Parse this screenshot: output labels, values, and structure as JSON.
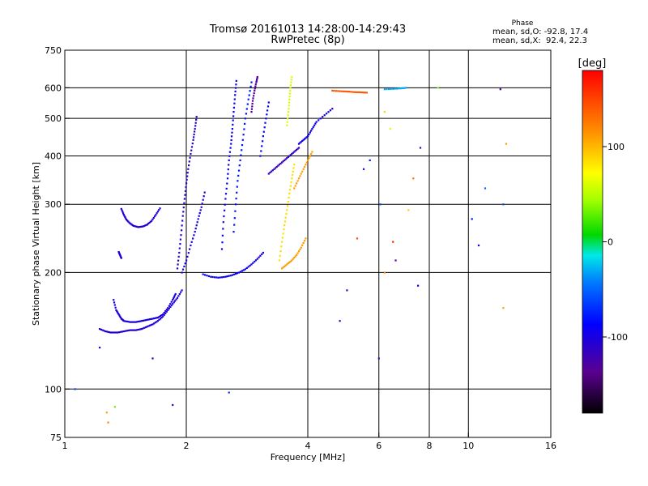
{
  "chart_data": {
    "type": "scatter",
    "title": "Tromsø 20161013 14:28:00-14:29:43",
    "subtitle": "RwPretec (8p)",
    "xlabel": "Frequency [MHz]",
    "ylabel": "Stationary phase Virtual Height [km]",
    "x_scale": "log",
    "y_scale": "log",
    "xlim": [
      1,
      16
    ],
    "ylim": [
      75,
      750
    ],
    "x_ticks": [
      {
        "value": 1,
        "label": "1"
      },
      {
        "value": 2,
        "label": "2"
      },
      {
        "value": 4,
        "label": "4"
      },
      {
        "value": 6,
        "label": "6"
      },
      {
        "value": 8,
        "label": "8"
      },
      {
        "value": 10,
        "label": "10"
      },
      {
        "value": 16,
        "label": "16"
      }
    ],
    "x_grid": [
      2,
      4,
      6,
      8,
      10
    ],
    "y_ticks": [
      {
        "value": 75,
        "label": "75"
      },
      {
        "value": 100,
        "label": "100"
      },
      {
        "value": 200,
        "label": "200"
      },
      {
        "value": 300,
        "label": "300"
      },
      {
        "value": 400,
        "label": "400"
      },
      {
        "value": 500,
        "label": "500"
      },
      {
        "value": 600,
        "label": "600"
      },
      {
        "value": 750,
        "label": "750"
      }
    ],
    "y_grid": [
      100,
      200,
      300,
      400,
      500,
      600
    ],
    "grid": true,
    "phase_stats": {
      "heading": "Phase",
      "o_line": "mean, sd,O: -92.8, 17.4",
      "x_line": "mean, sd,X:  92.4, 22.3"
    },
    "colorbar": {
      "label": "[deg]",
      "range": [
        -180,
        180
      ],
      "ticks": [
        {
          "value": 100,
          "label": "100"
        },
        {
          "value": 0,
          "label": "0"
        },
        {
          "value": -100,
          "label": "-100"
        }
      ]
    },
    "traces": [
      {
        "name": "",
        "phase": -100,
        "points": [
          [
            1.32,
            170
          ],
          [
            1.34,
            160
          ],
          [
            1.36,
            156
          ],
          [
            1.38,
            152
          ],
          [
            1.4,
            150
          ],
          [
            1.45,
            149
          ],
          [
            1.5,
            149
          ],
          [
            1.55,
            150
          ],
          [
            1.6,
            151
          ],
          [
            1.65,
            152
          ],
          [
            1.7,
            153
          ],
          [
            1.75,
            156
          ],
          [
            1.8,
            162
          ],
          [
            1.85,
            170
          ],
          [
            1.88,
            176
          ]
        ]
      },
      {
        "name": "",
        "phase": -105,
        "points": [
          [
            1.22,
            143
          ],
          [
            1.26,
            141
          ],
          [
            1.3,
            140
          ],
          [
            1.35,
            140
          ],
          [
            1.4,
            141
          ],
          [
            1.45,
            142
          ],
          [
            1.5,
            142
          ],
          [
            1.55,
            143
          ],
          [
            1.6,
            145
          ],
          [
            1.65,
            147
          ],
          [
            1.7,
            150
          ],
          [
            1.75,
            154
          ],
          [
            1.8,
            160
          ],
          [
            1.85,
            166
          ],
          [
            1.9,
            172
          ],
          [
            1.95,
            180
          ]
        ]
      },
      {
        "name": "",
        "phase": -105,
        "points": [
          [
            1.38,
            292
          ],
          [
            1.4,
            282
          ],
          [
            1.42,
            274
          ],
          [
            1.45,
            268
          ],
          [
            1.48,
            264
          ],
          [
            1.52,
            262
          ],
          [
            1.56,
            263
          ],
          [
            1.6,
            266
          ],
          [
            1.64,
            272
          ],
          [
            1.68,
            282
          ],
          [
            1.72,
            293
          ]
        ]
      },
      {
        "name": "",
        "phase": -105,
        "points": [
          [
            1.36,
            226
          ],
          [
            1.37,
            222
          ],
          [
            1.38,
            218
          ]
        ]
      },
      {
        "name": "",
        "phase": -110,
        "points": [
          [
            1.9,
            205
          ],
          [
            1.92,
            225
          ],
          [
            1.94,
            250
          ],
          [
            1.96,
            280
          ],
          [
            1.98,
            310
          ],
          [
            2.0,
            340
          ],
          [
            2.02,
            370
          ],
          [
            2.05,
            405
          ],
          [
            2.08,
            440
          ],
          [
            2.1,
            470
          ],
          [
            2.12,
            505
          ]
        ]
      },
      {
        "name": "",
        "phase": -100,
        "points": [
          [
            1.95,
            200
          ],
          [
            2.0,
            215
          ],
          [
            2.05,
            235
          ],
          [
            2.1,
            255
          ],
          [
            2.14,
            275
          ],
          [
            2.18,
            295
          ],
          [
            2.22,
            322
          ]
        ]
      },
      {
        "name": "",
        "phase": -95,
        "points": [
          [
            2.2,
            198
          ],
          [
            2.3,
            195
          ],
          [
            2.4,
            194
          ],
          [
            2.5,
            195
          ],
          [
            2.6,
            197
          ],
          [
            2.7,
            200
          ],
          [
            2.8,
            204
          ],
          [
            2.9,
            210
          ],
          [
            3.0,
            217
          ],
          [
            3.1,
            225
          ]
        ]
      },
      {
        "name": "",
        "phase": -95,
        "points": [
          [
            2.45,
            230
          ],
          [
            2.47,
            270
          ],
          [
            2.5,
            310
          ],
          [
            2.53,
            350
          ],
          [
            2.55,
            390
          ],
          [
            2.58,
            430
          ],
          [
            2.6,
            470
          ],
          [
            2.62,
            520
          ],
          [
            2.64,
            575
          ],
          [
            2.66,
            625
          ]
        ]
      },
      {
        "name": "",
        "phase": -80,
        "points": [
          [
            2.62,
            255
          ],
          [
            2.65,
            300
          ],
          [
            2.68,
            345
          ],
          [
            2.72,
            390
          ],
          [
            2.76,
            440
          ],
          [
            2.8,
            500
          ],
          [
            2.85,
            560
          ],
          [
            2.9,
            620
          ]
        ]
      },
      {
        "name": "",
        "phase": -130,
        "points": [
          [
            2.9,
            520
          ],
          [
            2.92,
            555
          ],
          [
            2.95,
            590
          ],
          [
            2.98,
            620
          ],
          [
            3.0,
            640
          ]
        ]
      },
      {
        "name": "",
        "phase": -85,
        "points": [
          [
            3.05,
            400
          ],
          [
            3.1,
            450
          ],
          [
            3.15,
            500
          ],
          [
            3.2,
            550
          ]
        ]
      },
      {
        "name": "",
        "phase": -115,
        "points": [
          [
            3.2,
            360
          ],
          [
            3.3,
            370
          ],
          [
            3.4,
            380
          ],
          [
            3.5,
            390
          ],
          [
            3.6,
            400
          ],
          [
            3.7,
            410
          ],
          [
            3.8,
            420
          ]
        ]
      },
      {
        "name": "",
        "phase": 85,
        "points": [
          [
            3.4,
            215
          ],
          [
            3.45,
            240
          ],
          [
            3.5,
            265
          ],
          [
            3.55,
            290
          ],
          [
            3.6,
            320
          ],
          [
            3.65,
            350
          ],
          [
            3.7,
            380
          ]
        ]
      },
      {
        "name": "",
        "phase": 110,
        "points": [
          [
            3.45,
            205
          ],
          [
            3.55,
            210
          ],
          [
            3.65,
            215
          ],
          [
            3.75,
            222
          ],
          [
            3.85,
            232
          ],
          [
            3.95,
            245
          ]
        ]
      },
      {
        "name": "",
        "phase": 110,
        "points": [
          [
            3.7,
            330
          ],
          [
            3.8,
            350
          ],
          [
            3.9,
            370
          ],
          [
            4.0,
            390
          ],
          [
            4.1,
            410
          ]
        ]
      },
      {
        "name": "",
        "phase": 60,
        "points": [
          [
            3.55,
            480
          ],
          [
            3.58,
            520
          ],
          [
            3.6,
            560
          ],
          [
            3.62,
            600
          ],
          [
            3.65,
            640
          ]
        ]
      },
      {
        "name": "",
        "phase": -95,
        "points": [
          [
            3.8,
            430
          ],
          [
            3.9,
            440
          ],
          [
            4.0,
            450
          ],
          [
            4.1,
            470
          ],
          [
            4.2,
            490
          ],
          [
            4.4,
            510
          ],
          [
            4.6,
            530
          ]
        ]
      },
      {
        "name": "",
        "phase": 140,
        "points": [
          [
            4.6,
            590
          ],
          [
            4.8,
            588
          ],
          [
            5.0,
            587
          ],
          [
            5.2,
            585
          ],
          [
            5.4,
            584
          ],
          [
            5.6,
            583
          ]
        ]
      },
      {
        "name": "",
        "phase": -30,
        "points": [
          [
            6.2,
            595
          ],
          [
            6.5,
            596
          ],
          [
            6.8,
            598
          ],
          [
            7.0,
            600
          ]
        ]
      }
    ],
    "scattered": [
      {
        "x": 1.27,
        "y": 87,
        "phase": 110
      },
      {
        "x": 1.28,
        "y": 82,
        "phase": 120
      },
      {
        "x": 1.33,
        "y": 90,
        "phase": 30
      },
      {
        "x": 1.06,
        "y": 100,
        "phase": -60
      },
      {
        "x": 1.85,
        "y": 91,
        "phase": -110
      },
      {
        "x": 2.55,
        "y": 98,
        "phase": -70
      },
      {
        "x": 1.22,
        "y": 128,
        "phase": -100
      },
      {
        "x": 1.65,
        "y": 120,
        "phase": -100
      },
      {
        "x": 5.0,
        "y": 180,
        "phase": -110
      },
      {
        "x": 5.3,
        "y": 245,
        "phase": 150
      },
      {
        "x": 5.7,
        "y": 390,
        "phase": -80
      },
      {
        "x": 5.5,
        "y": 370,
        "phase": -120
      },
      {
        "x": 6.2,
        "y": 200,
        "phase": 120
      },
      {
        "x": 6.0,
        "y": 120,
        "phase": -120
      },
      {
        "x": 6.05,
        "y": 300,
        "phase": -60
      },
      {
        "x": 6.5,
        "y": 240,
        "phase": 165
      },
      {
        "x": 6.6,
        "y": 215,
        "phase": -130
      },
      {
        "x": 7.1,
        "y": 290,
        "phase": 90
      },
      {
        "x": 7.3,
        "y": 350,
        "phase": 130
      },
      {
        "x": 7.5,
        "y": 185,
        "phase": -90
      },
      {
        "x": 7.6,
        "y": 420,
        "phase": -120
      },
      {
        "x": 8.4,
        "y": 600,
        "phase": 40
      },
      {
        "x": 10.2,
        "y": 275,
        "phase": -80
      },
      {
        "x": 10.6,
        "y": 235,
        "phase": -100
      },
      {
        "x": 11.0,
        "y": 330,
        "phase": -50
      },
      {
        "x": 12.0,
        "y": 595,
        "phase": -130
      },
      {
        "x": 12.2,
        "y": 300,
        "phase": -60
      },
      {
        "x": 12.4,
        "y": 430,
        "phase": 110
      },
      {
        "x": 12.2,
        "y": 162,
        "phase": 110
      },
      {
        "x": 6.2,
        "y": 520,
        "phase": 90
      },
      {
        "x": 6.4,
        "y": 470,
        "phase": 60
      },
      {
        "x": 4.8,
        "y": 150,
        "phase": -100
      }
    ]
  }
}
